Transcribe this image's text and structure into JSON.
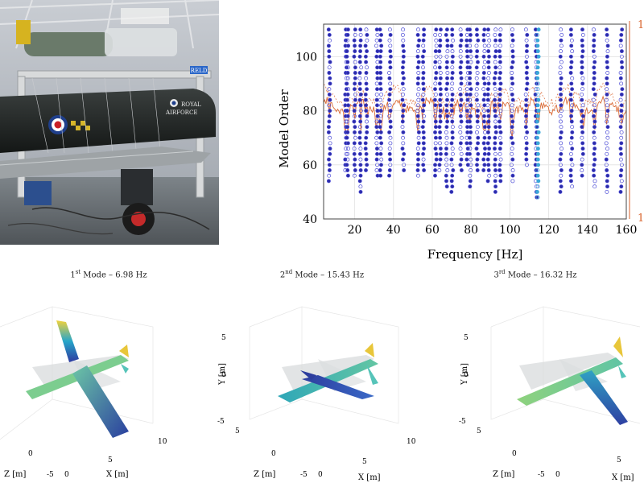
{
  "photo": {
    "sign": "RELD",
    "roundel_text_1": "ROYAL",
    "roundel_text_2": "AIRFORCE"
  },
  "stabilization": {
    "xlabel": "Frequency [Hz]",
    "ylabel": "Model Order",
    "right_axis_ticks": [
      "1",
      "1"
    ],
    "colors": {
      "stable": "#2c2ca8",
      "hollow": "#4b4bd6",
      "highlight": "#3aa7d8",
      "curve": "#d8622a",
      "grid": "#e6e6e6"
    }
  },
  "chart_data": {
    "type": "scatter",
    "xlabel": "Frequency [Hz]",
    "ylabel": "Model Order",
    "x_ticks": [
      "20",
      "40",
      "60",
      "80",
      "100",
      "120",
      "140",
      "160"
    ],
    "y_ticks": [
      "40",
      "60",
      "80",
      "100"
    ],
    "xlim": [
      4,
      160
    ],
    "ylim": [
      40,
      112
    ],
    "stable_pole_columns": [
      6.98,
      15.43,
      16.32,
      20.1,
      23.0,
      26.0,
      31.5,
      33.4,
      38.2,
      45.0,
      52.8,
      55.5,
      61.8,
      64.0,
      67.5,
      70.3,
      74.8,
      78.1,
      79.6,
      83.2,
      86.8,
      89.0,
      92.5,
      95.0,
      101.2,
      108.6,
      113.5,
      114.5,
      126.3,
      131.8,
      137.4,
      143.5,
      150.1,
      157.5
    ],
    "highlight_pole_column": 114.5,
    "model_order_range": [
      48,
      110
    ]
  },
  "modes": [
    {
      "title_ordinal": "1",
      "title_suffix": "st",
      "title_rest": " Mode – 6.98 Hz",
      "y_axis_label": "",
      "z_axis_label": "Z [m]",
      "x_axis_label": "X [m]",
      "ticks": [
        "10",
        "5",
        "0",
        "-5",
        "0"
      ]
    },
    {
      "title_ordinal": "2",
      "title_suffix": "nd",
      "title_rest": " Mode – 15.43 Hz",
      "y_axis_label": "Y [m]",
      "z_axis_label": "Z [m]",
      "x_axis_label": "X [m]",
      "ticks": [
        "5",
        "0",
        "-5",
        "5",
        "0",
        "-5",
        "0",
        "5",
        "10"
      ]
    },
    {
      "title_ordinal": "3",
      "title_suffix": "rd",
      "title_rest": " Mode – 16.32 Hz",
      "y_axis_label": "Y [m]",
      "z_axis_label": "Z [m]",
      "x_axis_label": "X [m]",
      "ticks": [
        "5",
        "0",
        "-5",
        "5",
        "0",
        "-5",
        "0",
        "5"
      ]
    }
  ]
}
